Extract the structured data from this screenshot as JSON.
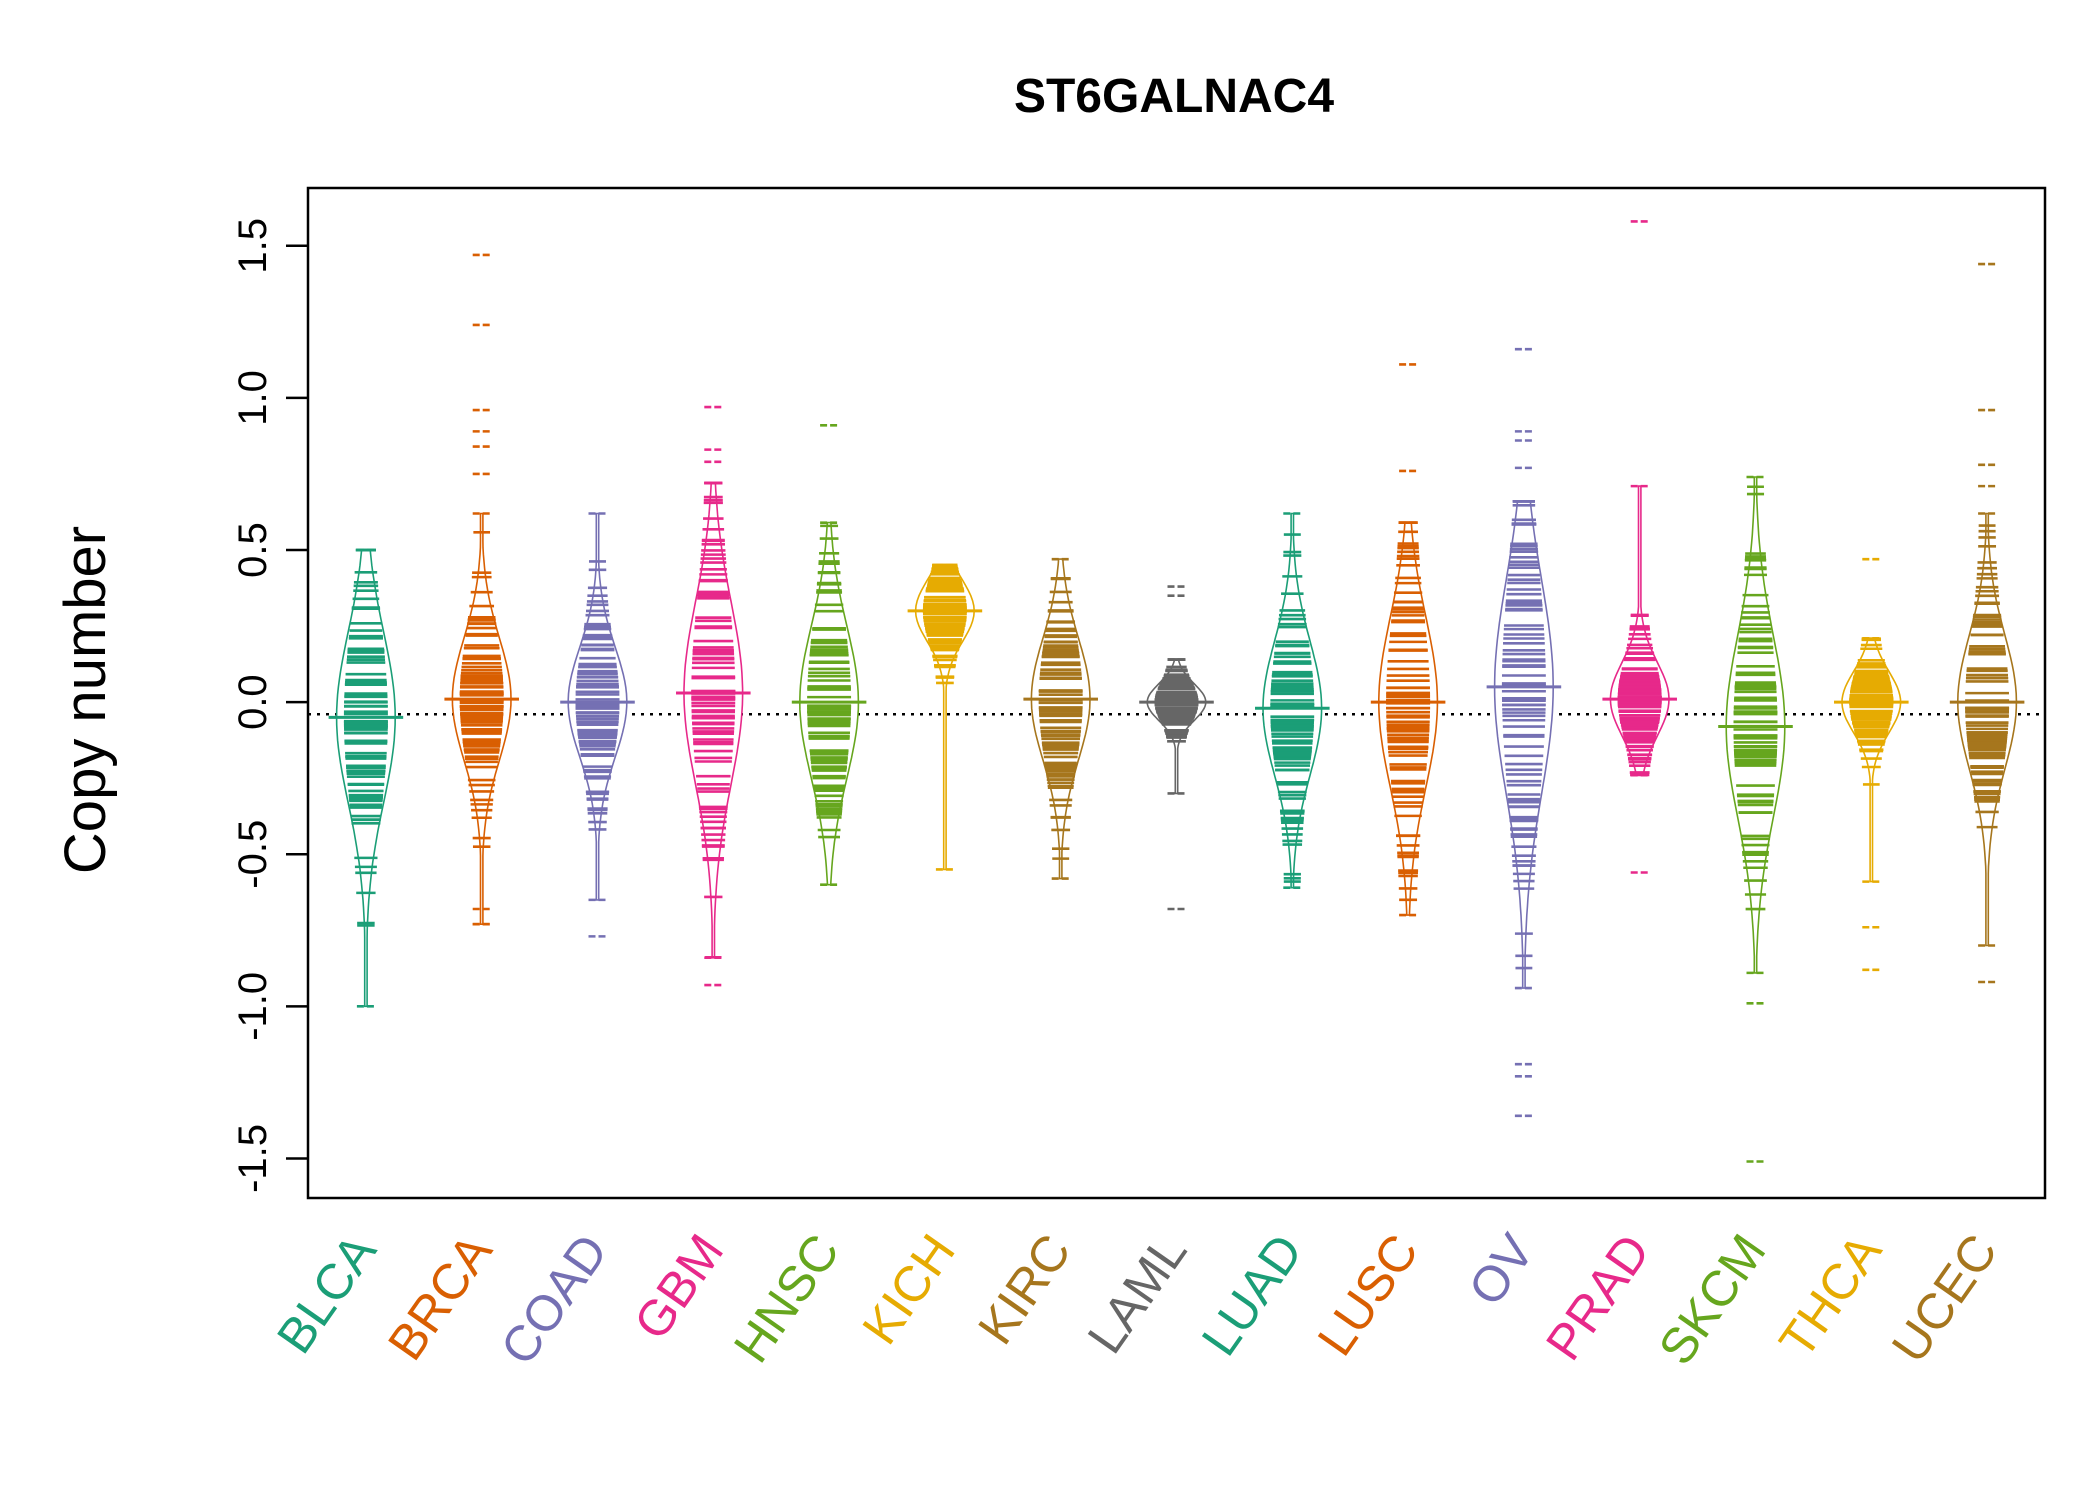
{
  "chart_data": {
    "type": "beanplot",
    "title": "ST6GALNAC4",
    "xlabel": "",
    "ylabel": "Copy number",
    "ylim": [
      -1.63,
      1.69
    ],
    "yticks": [
      -1.5,
      -1.0,
      -0.5,
      0.0,
      0.5,
      1.0,
      1.5
    ],
    "ytick_labels": [
      "-1.5",
      "-1.0",
      "-0.5",
      "0.0",
      "0.5",
      "1.0",
      "1.5"
    ],
    "reference_line": -0.04,
    "grid": false,
    "legend": "none",
    "categories": [
      "BLCA",
      "BRCA",
      "COAD",
      "GBM",
      "HNSC",
      "KICH",
      "KIRC",
      "LAML",
      "LUAD",
      "LUSC",
      "OV",
      "PRAD",
      "SKCM",
      "THCA",
      "UCEC"
    ],
    "colors": [
      "#1B9E77",
      "#D95F02",
      "#7570B3",
      "#E7298A",
      "#66A61E",
      "#E6AB02",
      "#A6761D",
      "#666666",
      "#1B9E77",
      "#D95F02",
      "#7570B3",
      "#E7298A",
      "#66A61E",
      "#E6AB02",
      "#A6761D"
    ],
    "series": [
      {
        "category": "BLCA",
        "min": -1.0,
        "max": 0.5,
        "center": -0.05,
        "spread": 0.28,
        "outliers": []
      },
      {
        "category": "BRCA",
        "min": -0.73,
        "max": 0.62,
        "center": 0.01,
        "spread": 0.2,
        "outliers": [
          1.47,
          1.24,
          0.96,
          0.89,
          0.84,
          0.75,
          -0.68,
          -0.73
        ]
      },
      {
        "category": "COAD",
        "min": -0.65,
        "max": 0.62,
        "center": 0.0,
        "spread": 0.18,
        "outliers": [
          -0.77
        ]
      },
      {
        "category": "GBM",
        "min": -0.84,
        "max": 0.72,
        "center": 0.03,
        "spread": 0.3,
        "outliers": [
          0.97,
          0.83,
          0.79,
          -0.93
        ]
      },
      {
        "category": "HNSC",
        "min": -0.6,
        "max": 0.59,
        "center": 0.0,
        "spread": 0.25,
        "outliers": [
          0.91
        ]
      },
      {
        "category": "KICH",
        "min": -0.55,
        "max": 0.45,
        "center": 0.3,
        "spread": 0.1,
        "outliers": []
      },
      {
        "category": "KIRC",
        "min": -0.58,
        "max": 0.47,
        "center": 0.01,
        "spread": 0.2,
        "outliers": []
      },
      {
        "category": "LAML",
        "min": -0.3,
        "max": 0.14,
        "center": 0.0,
        "spread": 0.06,
        "outliers": [
          0.38,
          0.35,
          -0.68
        ]
      },
      {
        "category": "LUAD",
        "min": -0.61,
        "max": 0.62,
        "center": -0.02,
        "spread": 0.22,
        "outliers": []
      },
      {
        "category": "LUSC",
        "min": -0.7,
        "max": 0.59,
        "center": 0.0,
        "spread": 0.28,
        "outliers": [
          1.11,
          0.76
        ]
      },
      {
        "category": "OV",
        "min": -0.94,
        "max": 0.66,
        "center": 0.05,
        "spread": 0.35,
        "outliers": [
          1.16,
          0.89,
          0.86,
          0.77,
          -1.19,
          -1.23,
          -1.36
        ]
      },
      {
        "category": "PRAD",
        "min": -0.24,
        "max": 0.71,
        "center": 0.01,
        "spread": 0.12,
        "outliers": [
          1.58,
          -0.56
        ]
      },
      {
        "category": "SKCM",
        "min": -0.89,
        "max": 0.74,
        "center": -0.08,
        "spread": 0.3,
        "outliers": [
          -0.99,
          -1.51
        ]
      },
      {
        "category": "THCA",
        "min": -0.59,
        "max": 0.21,
        "center": 0.0,
        "spread": 0.1,
        "outliers": [
          0.47,
          -0.74,
          -0.88
        ]
      },
      {
        "category": "UCEC",
        "min": -0.8,
        "max": 0.62,
        "center": 0.0,
        "spread": 0.22,
        "outliers": [
          1.44,
          0.96,
          0.78,
          0.71,
          -0.92
        ]
      }
    ]
  }
}
